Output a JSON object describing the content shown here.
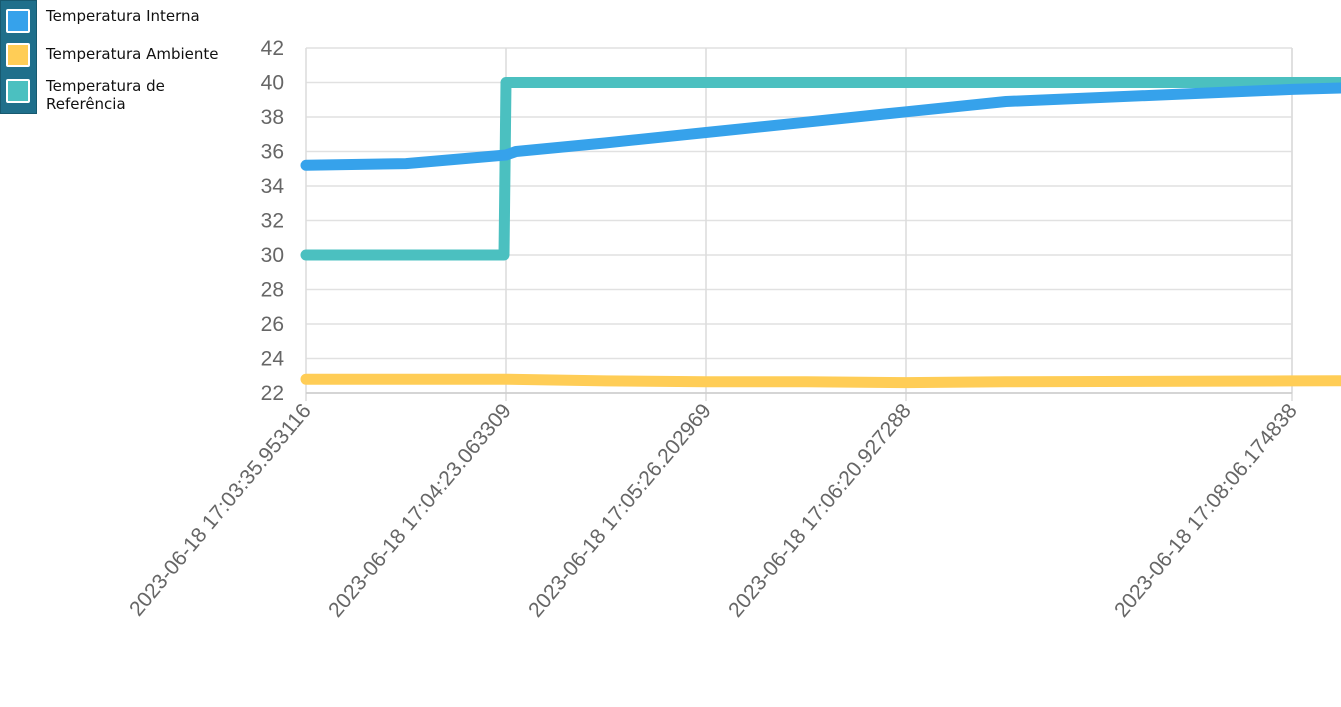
{
  "chart_data": {
    "type": "line",
    "title": "",
    "xlabel": "",
    "ylabel": "",
    "ylim": [
      22,
      42
    ],
    "yticks": [
      22,
      24,
      26,
      28,
      30,
      32,
      34,
      36,
      38,
      40,
      42
    ],
    "grid": true,
    "legend_position": "top-left",
    "x_ticks": [
      "2023-06-18 17:03:35.953116",
      "2023-06-18 17:04:23.063309",
      "2023-06-18 17:05:26.202969",
      "2023-06-18 17:06:20.927288",
      "2023-06-18 17:08:06.174838"
    ],
    "series": [
      {
        "name": "Temperatura Interna",
        "color": "#36a2eb",
        "points": [
          [
            0,
            35.2
          ],
          [
            0.5,
            35.3
          ],
          [
            1,
            35.8
          ],
          [
            1.05,
            36.0
          ],
          [
            1.5,
            36.5
          ],
          [
            2,
            37.1
          ],
          [
            2.5,
            37.7
          ],
          [
            3,
            38.3
          ],
          [
            3.5,
            38.9
          ],
          [
            4,
            39.6
          ],
          [
            4.95,
            40.2
          ]
        ]
      },
      {
        "name": "Temperatura Ambiente",
        "color": "#ffcd56",
        "points": [
          [
            0,
            22.8
          ],
          [
            0.5,
            22.8
          ],
          [
            1,
            22.8
          ],
          [
            1.5,
            22.7
          ],
          [
            2,
            22.65
          ],
          [
            2.5,
            22.65
          ],
          [
            3,
            22.6
          ],
          [
            3.5,
            22.65
          ],
          [
            4,
            22.7
          ],
          [
            4.5,
            22.75
          ],
          [
            4.95,
            22.8
          ]
        ]
      },
      {
        "name": "Temperatura de Referência",
        "color": "#4bc0c0",
        "points": [
          [
            0,
            30
          ],
          [
            0.99,
            30
          ],
          [
            1,
            40
          ],
          [
            2,
            40
          ],
          [
            3,
            40
          ],
          [
            4,
            40
          ],
          [
            4.95,
            40
          ]
        ]
      }
    ]
  }
}
